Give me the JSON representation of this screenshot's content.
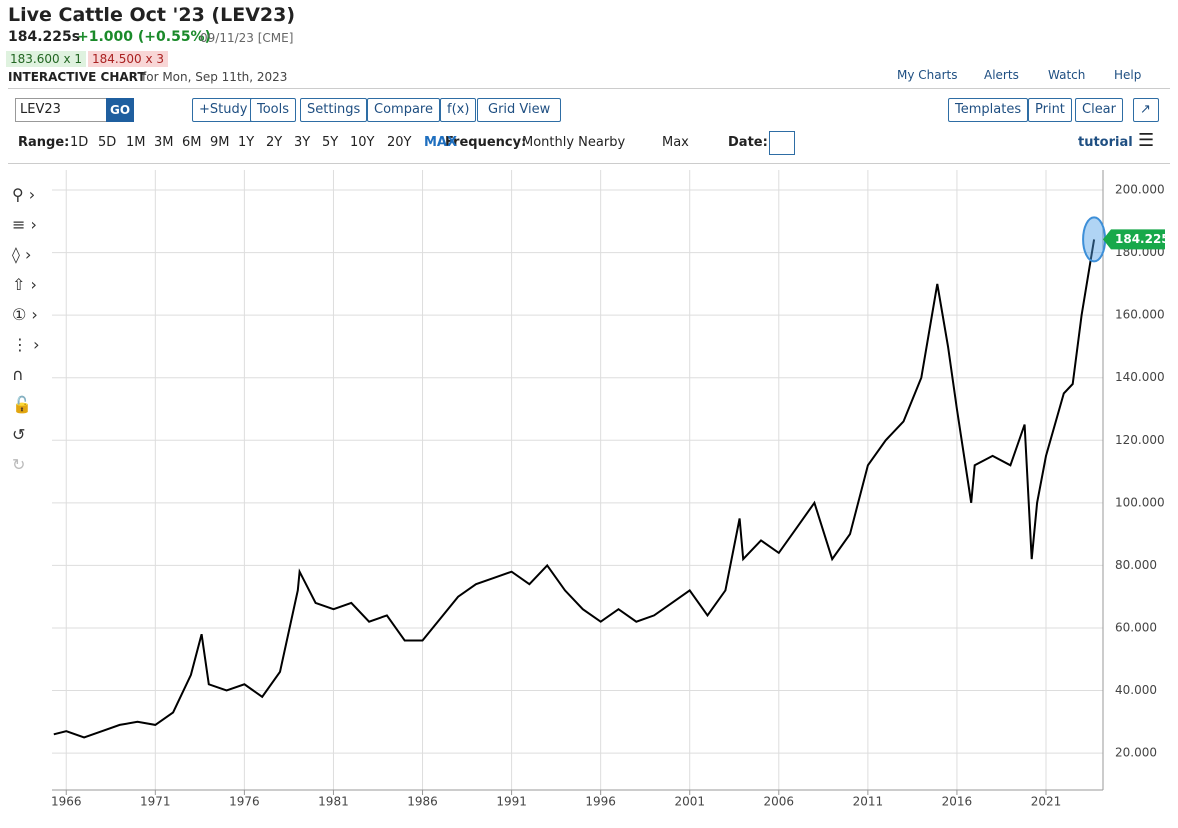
{
  "header": {
    "title": "Live Cattle Oct '23 (LEV23)",
    "last": "184.225s",
    "change": "+1.000 (+0.55%)",
    "meta": "09/11/23 [CME]",
    "bid": "183.600 x 1",
    "ask": "184.500 x 3",
    "chart_label": "INTERACTIVE CHART",
    "chart_date": "for Mon, Sep 11th, 2023"
  },
  "nav": {
    "my_charts": "My Charts",
    "alerts": "Alerts",
    "watch": "Watch",
    "help": "Help"
  },
  "toolbar": {
    "symbol": "LEV23",
    "go": "GO",
    "buttons": [
      "+Study",
      "Tools",
      "Settings",
      "Compare",
      "f(x)",
      "Grid View"
    ],
    "right_buttons": [
      "Templates",
      "Print",
      "Clear"
    ]
  },
  "range": {
    "label": "Range:",
    "options": [
      "1D",
      "5D",
      "1M",
      "3M",
      "6M",
      "9M",
      "1Y",
      "2Y",
      "3Y",
      "5Y",
      "10Y",
      "20Y",
      "MAX"
    ],
    "frequency_label": "Frequency:",
    "frequency": "Monthly Nearby",
    "period": "Max",
    "date_label": "Date:",
    "tutorial": "tutorial"
  },
  "chart_data": {
    "type": "line",
    "color": "#000000",
    "grid": true,
    "x": [
      1965.3,
      1966,
      1967,
      1968,
      1969,
      1970,
      1971,
      1972,
      1973,
      1973.6,
      1974,
      1975,
      1976,
      1977,
      1978,
      1979,
      1979.1,
      1980,
      1981,
      1982,
      1983,
      1984,
      1985,
      1986,
      1987,
      1988,
      1989,
      1990,
      1991,
      1992,
      1993,
      1994,
      1995,
      1996,
      1997,
      1998,
      1999,
      2000,
      2001,
      2002,
      2003,
      2003.8,
      2004,
      2005,
      2006,
      2007,
      2008,
      2009,
      2010,
      2011,
      2012,
      2013,
      2014,
      2014.9,
      2015.5,
      2016,
      2016.8,
      2017,
      2018,
      2019,
      2019.8,
      2020.2,
      2020.5,
      2021,
      2022,
      2022.5,
      2023,
      2023.7
    ],
    "values": [
      26,
      27,
      25,
      27,
      29,
      30,
      29,
      33,
      45,
      58,
      42,
      40,
      42,
      38,
      46,
      72,
      78,
      68,
      66,
      68,
      62,
      64,
      56,
      56,
      63,
      70,
      74,
      76,
      78,
      74,
      80,
      72,
      66,
      62,
      66,
      62,
      64,
      68,
      72,
      64,
      72,
      95,
      82,
      88,
      84,
      92,
      100,
      82,
      90,
      112,
      120,
      126,
      140,
      170,
      150,
      130,
      100,
      112,
      115,
      112,
      125,
      82,
      100,
      115,
      135,
      138,
      160,
      184.225
    ],
    "last_price": 184.225,
    "xlim": [
      1965.2,
      2024.2
    ],
    "xticks": [
      1966,
      1971,
      1976,
      1981,
      1986,
      1991,
      1996,
      2001,
      2006,
      2011,
      2016,
      2021
    ],
    "ylim": [
      8.2,
      206.4
    ],
    "yticks": [
      {
        "value": 20,
        "label": "20.000"
      },
      {
        "value": 40,
        "label": "40.000"
      },
      {
        "value": 60,
        "label": "60.000"
      },
      {
        "value": 80,
        "label": "80.000"
      },
      {
        "value": 100,
        "label": "100.000"
      },
      {
        "value": 120,
        "label": "120.000"
      },
      {
        "value": 140,
        "label": "140.000"
      },
      {
        "value": 160,
        "label": "160.000"
      },
      {
        "value": 180,
        "label": "180.000"
      },
      {
        "value": 200,
        "label": "200.000"
      }
    ]
  }
}
